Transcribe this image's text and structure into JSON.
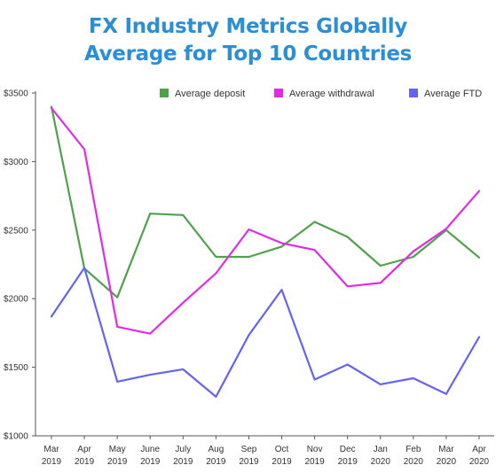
{
  "chart_data": {
    "type": "line",
    "title": "FX Industry Metrics Globally",
    "subtitle": "Average for Top 10 Countries",
    "xlabel": "",
    "ylabel": "",
    "categories": [
      [
        "Mar",
        "2019"
      ],
      [
        "Apr",
        "2019"
      ],
      [
        "May",
        "2019"
      ],
      [
        "June",
        "2019"
      ],
      [
        "July",
        "2019"
      ],
      [
        "Aug",
        "2019"
      ],
      [
        "Sep",
        "2019"
      ],
      [
        "Oct",
        "2019"
      ],
      [
        "Nov",
        "2019"
      ],
      [
        "Dec",
        "2019"
      ],
      [
        "Jan",
        "2020"
      ],
      [
        "Feb",
        "2020"
      ],
      [
        "Mar",
        "2020"
      ],
      [
        "Apr",
        "2020"
      ]
    ],
    "yticks": [
      "$1000",
      "$1500",
      "$2000",
      "$2500",
      "$3000",
      "$3500"
    ],
    "ylim": [
      1000,
      3500
    ],
    "grid": false,
    "legend_position": "top",
    "series": [
      {
        "name": "Average deposit",
        "color": "#4fa24a",
        "values": [
          3400,
          2220,
          2010,
          2620,
          2610,
          2305,
          2305,
          2380,
          2560,
          2450,
          2240,
          2305,
          2500,
          2300
        ]
      },
      {
        "name": "Average withdrawal",
        "color": "#e02ce6",
        "values": [
          3390,
          3090,
          1795,
          1745,
          1970,
          2185,
          2505,
          2405,
          2355,
          2090,
          2115,
          2345,
          2510,
          2785
        ]
      },
      {
        "name": "Average FTD",
        "color": "#6464f0",
        "values": [
          1870,
          2225,
          1395,
          1445,
          1485,
          1285,
          1735,
          2065,
          1410,
          1520,
          1375,
          1420,
          1305,
          1720
        ]
      }
    ]
  }
}
